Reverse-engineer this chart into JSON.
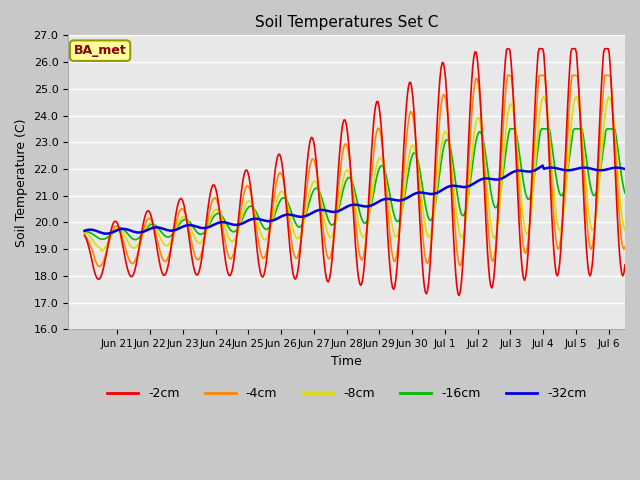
{
  "title": "Soil Temperatures Set C",
  "xlabel": "Time",
  "ylabel": "Soil Temperature (C)",
  "ylim": [
    16.0,
    27.0
  ],
  "yticks": [
    16.0,
    17.0,
    18.0,
    19.0,
    20.0,
    21.0,
    22.0,
    23.0,
    24.0,
    25.0,
    26.0,
    27.0
  ],
  "fig_bg_color": "#c8c8c8",
  "plot_bg": "#e8e8e8",
  "annotation_text": "BA_met",
  "annotation_bg": "#ffff99",
  "annotation_border": "#999900",
  "annotation_text_color": "#880000",
  "series": {
    "-2cm": {
      "color": "#ee0000",
      "lw": 1.2
    },
    "-4cm": {
      "color": "#ff8800",
      "lw": 1.2
    },
    "-8cm": {
      "color": "#dddd00",
      "lw": 1.2
    },
    "-16cm": {
      "color": "#00bb00",
      "lw": 1.2
    },
    "-32cm": {
      "color": "#0000dd",
      "lw": 1.8
    }
  },
  "xlim_days": 16.5,
  "xstart_day": -0.5,
  "xtick_positions": [
    1,
    2,
    3,
    4,
    5,
    6,
    7,
    8,
    9,
    10,
    11,
    12,
    13,
    14,
    15,
    16
  ],
  "xtick_labels": [
    "Jun 21",
    "Jun 22",
    "Jun 23",
    "Jun 24",
    "Jun 25",
    "Jun 26",
    "Jun 27",
    "Jun 28",
    "Jun 29",
    "Jun 30",
    "Jul 1",
    "Jul 2",
    "Jul 3",
    "Jul 4",
    "Jul 5",
    "Jul 6"
  ],
  "num_points": 480,
  "grid_color": "#ffffff",
  "grid_lw": 1.0
}
